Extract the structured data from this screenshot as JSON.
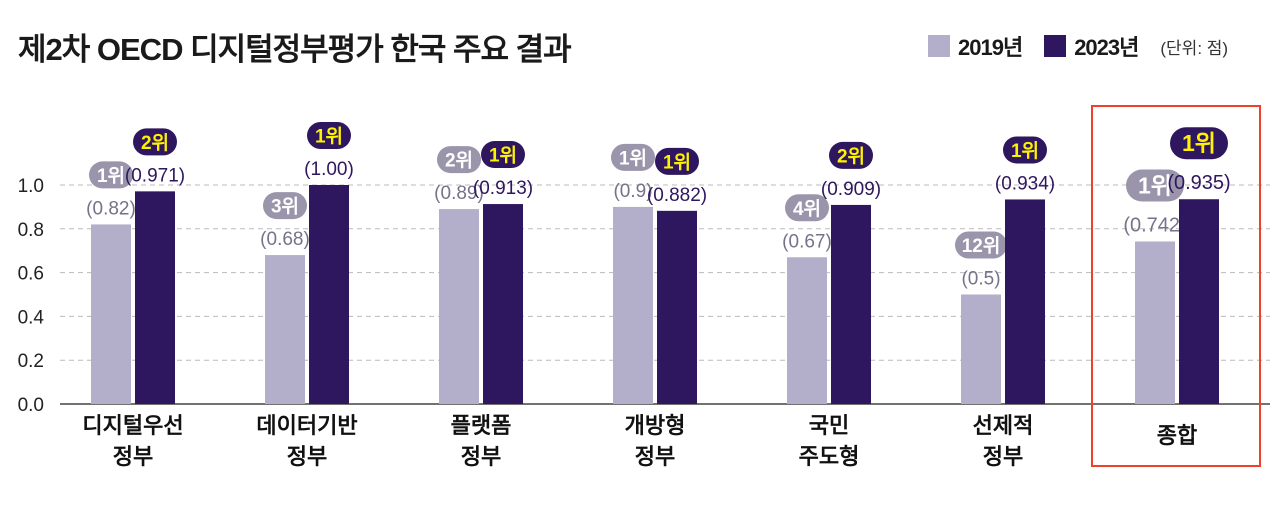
{
  "chart_data": {
    "type": "bar",
    "title": "제2차 OECD 디지털정부평가 한국 주요 결과",
    "unit": "(단위: 점)",
    "categories": [
      [
        "디지털우선",
        "정부"
      ],
      [
        "데이터기반",
        "정부"
      ],
      [
        "플랫폼",
        "정부"
      ],
      [
        "개방형",
        "정부"
      ],
      [
        "국민",
        "주도형"
      ],
      [
        "선제적",
        "정부"
      ],
      [
        "종합"
      ]
    ],
    "series": [
      {
        "name": "2019년",
        "color": "#b3aeca",
        "values": [
          0.82,
          0.68,
          0.89,
          0.9,
          0.67,
          0.5,
          0.742
        ],
        "labels": [
          "(0.82)",
          "(0.68)",
          "(0.89)",
          "(0.9)",
          "(0.67)",
          "(0.5)",
          "(0.742)"
        ],
        "ranks": [
          "1위",
          "3위",
          "2위",
          "1위",
          "4위",
          "12위",
          "1위"
        ],
        "badge_color": "#9a95ab",
        "badge_text_color": "#ffffff",
        "label_color": "#77728a"
      },
      {
        "name": "2023년",
        "color": "#2e175e",
        "values": [
          0.971,
          1.0,
          0.913,
          0.882,
          0.909,
          0.934,
          0.935
        ],
        "labels": [
          "(0.971)",
          "(1.00)",
          "(0.913)",
          "(0.882)",
          "(0.909)",
          "(0.934)",
          "(0.935)"
        ],
        "ranks": [
          "2위",
          "1위",
          "1위",
          "1위",
          "2위",
          "1위",
          "1위"
        ],
        "badge_color": "#2e175e",
        "badge_text_color": "#fff200",
        "label_color": "#2e175e"
      }
    ],
    "yticks": [
      "0.0",
      "0.2",
      "0.4",
      "0.6",
      "0.8",
      "1.0"
    ],
    "ylim": [
      0,
      1.0
    ],
    "grid": true,
    "highlight_category": "종합",
    "highlight_color": "#f0402a",
    "legend": "top-right"
  }
}
